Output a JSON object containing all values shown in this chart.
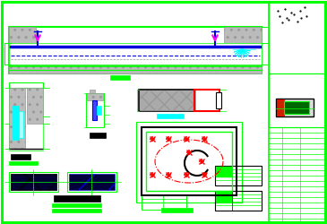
{
  "bg_color": "#ffffff",
  "G": "#00ff00",
  "B": "#0000dd",
  "R": "#ff0000",
  "C": "#00ffff",
  "M": "#ff00ff",
  "K": "#000000",
  "GR": "#999999",
  "GR_fc": "#bbbbbb",
  "fig_width": 3.65,
  "fig_height": 2.5,
  "dpi": 100
}
